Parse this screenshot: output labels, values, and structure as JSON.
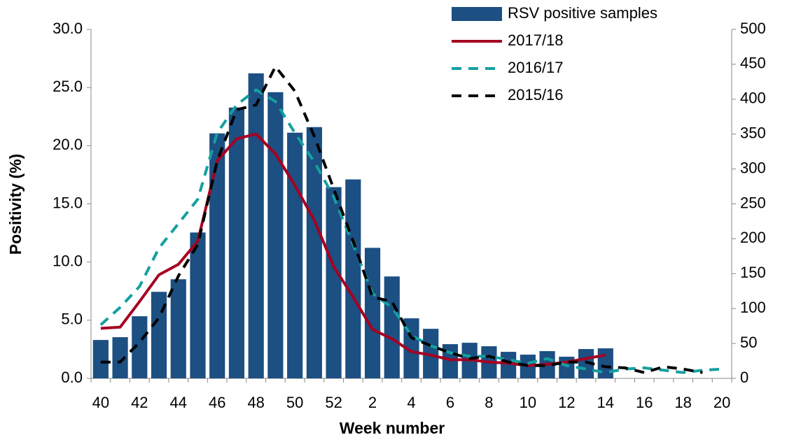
{
  "chart_data": {
    "type": "bar-line",
    "x_label": "Week number",
    "y_label": "Positivity (%)",
    "categories": [
      "40",
      null,
      "42",
      null,
      "44",
      null,
      "46",
      null,
      "48",
      null,
      "50",
      null,
      "52",
      null,
      "2",
      null,
      "4",
      null,
      "6",
      null,
      "8",
      null,
      "10",
      null,
      "12",
      null,
      "14",
      null,
      "16",
      null,
      "18",
      null,
      "20"
    ],
    "series": [
      {
        "name": "RSV positive samples",
        "type": "bar",
        "axis": "y2",
        "color": "#1c4f82",
        "values": [
          55,
          59,
          89,
          124,
          142,
          209,
          351,
          388,
          437,
          410,
          352,
          360,
          274,
          285,
          187,
          146,
          86,
          71,
          49,
          51,
          46,
          38,
          34,
          39,
          31,
          42,
          43,
          null,
          null,
          null,
          null,
          null,
          null
        ]
      },
      {
        "name": "2017/18",
        "type": "line",
        "color": "#a50021",
        "dash": false,
        "values": [
          4.3,
          4.4,
          6.6,
          8.9,
          9.8,
          11.8,
          18.7,
          20.6,
          21.0,
          19.3,
          16.6,
          13.6,
          9.6,
          7.0,
          4.2,
          3.4,
          2.3,
          2.0,
          1.6,
          1.6,
          1.4,
          1.3,
          1.1,
          1.2,
          1.4,
          1.7,
          2.0,
          null,
          null,
          null,
          null,
          null,
          null
        ]
      },
      {
        "name": "2016/17",
        "type": "line",
        "color": "#14a0a0",
        "dash": true,
        "values": [
          4.6,
          6.1,
          7.9,
          11.2,
          13.3,
          15.4,
          21.1,
          23.5,
          24.8,
          23.8,
          21.1,
          18.6,
          15.6,
          11.5,
          7.3,
          6.1,
          3.7,
          2.8,
          2.2,
          1.9,
          1.9,
          1.6,
          1.3,
          1.7,
          1.1,
          0.8,
          0.5,
          0.8,
          0.9,
          0.7,
          0.5,
          0.7,
          0.8
        ]
      },
      {
        "name": "2015/16",
        "type": "line",
        "color": "#000000",
        "dash": true,
        "values": [
          1.4,
          1.4,
          3.1,
          5.2,
          8.8,
          11.5,
          18.7,
          23.1,
          23.5,
          26.8,
          24.7,
          20.8,
          16.3,
          11.8,
          7.0,
          6.6,
          3.5,
          2.8,
          2.2,
          1.7,
          1.9,
          1.4,
          1.1,
          1.1,
          1.4,
          1.4,
          1.0,
          0.9,
          0.5,
          1.0,
          0.8,
          0.5,
          null
        ]
      }
    ],
    "ylim": [
      0,
      30
    ],
    "yticks": [
      {
        "value": 0,
        "label": "0.0"
      },
      {
        "value": 5,
        "label": "5.0"
      },
      {
        "value": 10,
        "label": "10.0"
      },
      {
        "value": 15,
        "label": "15.0"
      },
      {
        "value": 20,
        "label": "20.0"
      },
      {
        "value": 25,
        "label": "25.0"
      },
      {
        "value": 30,
        "label": "30.0"
      }
    ],
    "y2lim": [
      0,
      500
    ],
    "y2ticks": [
      0,
      50,
      100,
      150,
      200,
      250,
      300,
      350,
      400,
      450,
      500
    ],
    "legend": "top-right",
    "grid": false
  }
}
